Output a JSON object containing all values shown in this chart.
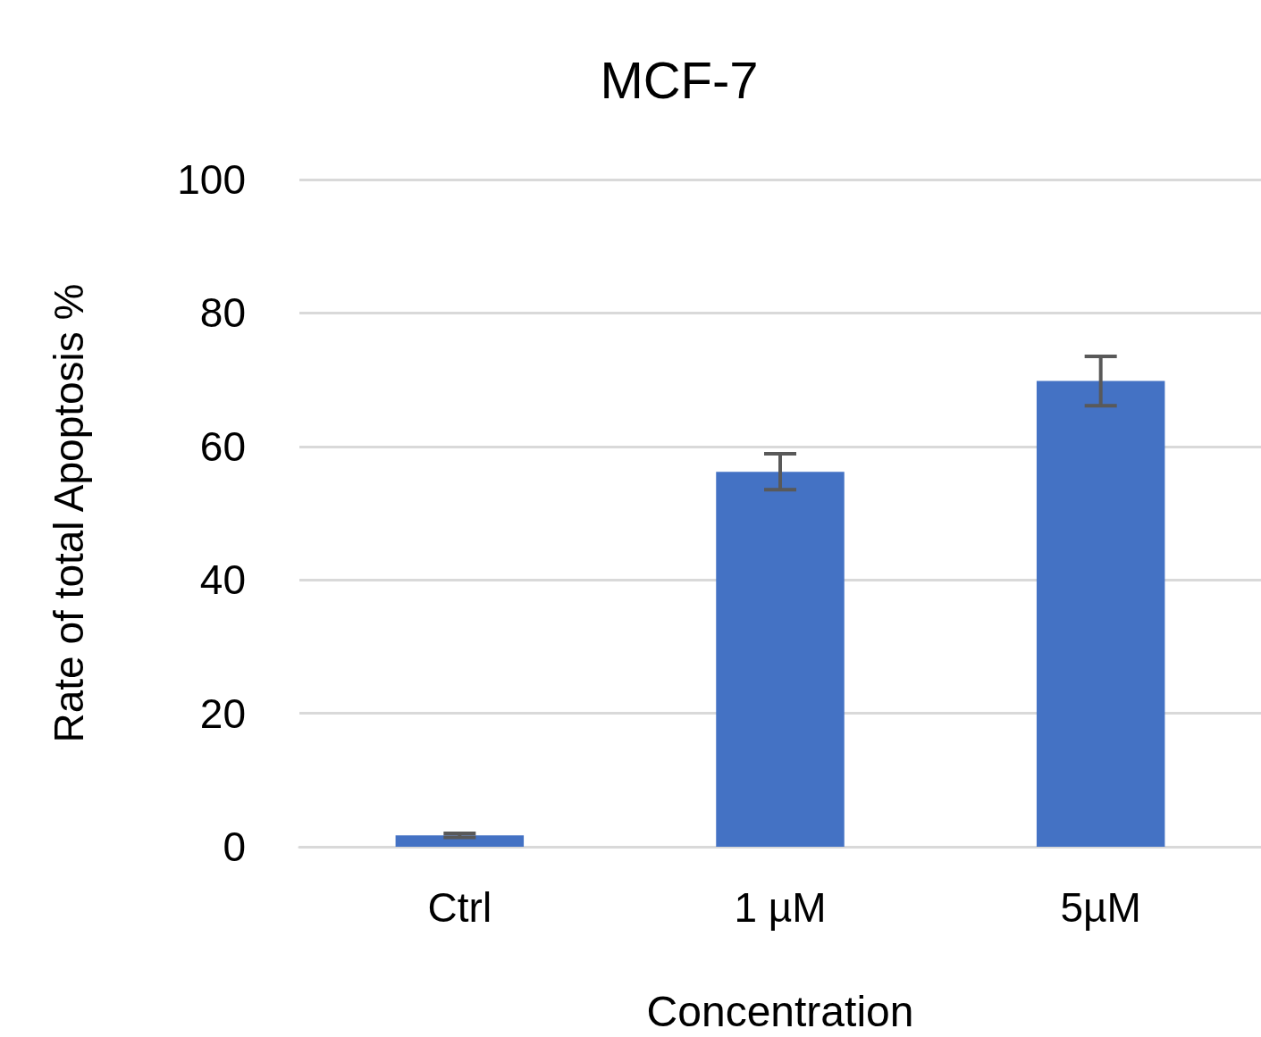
{
  "chart_data": {
    "type": "bar",
    "title": "MCF-7",
    "xlabel": "Concentration",
    "ylabel": "Rate of total Apoptosis %",
    "categories": [
      "Ctrl",
      "1 µM",
      "5µM"
    ],
    "values": [
      1.7,
      56.2,
      69.8
    ],
    "errors": [
      0.3,
      2.7,
      3.7
    ],
    "color": "#4472c4",
    "ylim": [
      0,
      100
    ],
    "yticks": [
      0,
      20,
      40,
      60,
      80,
      100
    ],
    "grid": "y"
  }
}
